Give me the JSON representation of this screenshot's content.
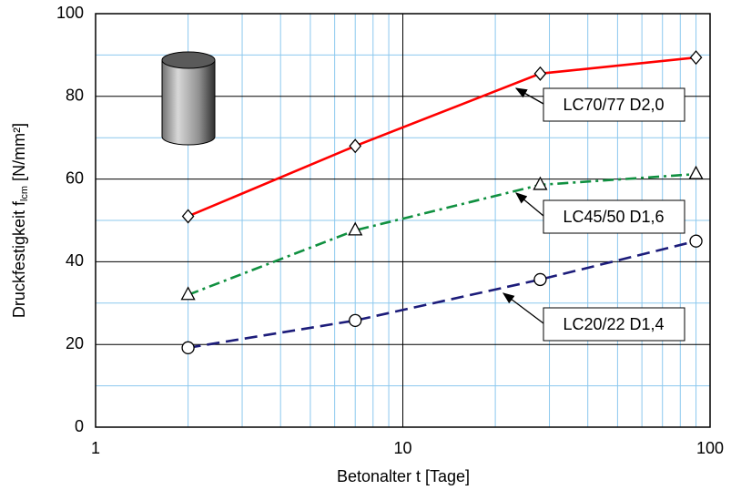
{
  "chart_data": {
    "type": "line",
    "x_label": "Betonalter t [Tage]",
    "y_label": {
      "text": "Druckfestigkeit f",
      "subscript": "lcm",
      "unit": "[N/mm²]"
    },
    "x_log": true,
    "xlim": [
      1,
      100
    ],
    "ylim": [
      0,
      100
    ],
    "xticks": [
      1,
      10,
      100
    ],
    "yticks": [
      0,
      20,
      40,
      60,
      80,
      100
    ],
    "x_minor_ticks": [
      2,
      3,
      4,
      5,
      6,
      7,
      8,
      9,
      20,
      30,
      40,
      50,
      60,
      70,
      80,
      90
    ],
    "y_minor_ticks": [
      10,
      30,
      50,
      70,
      90
    ],
    "grid": true,
    "x": [
      2,
      7,
      28,
      90
    ],
    "series": [
      {
        "name": "LC70/77 D2,0",
        "color": "#ff0000",
        "line_style": "solid",
        "marker": "diamond",
        "values": [
          51,
          68,
          85.5,
          89.4
        ]
      },
      {
        "name": "LC45/50 D1,6",
        "color": "#109040",
        "line_style": "dashdot",
        "marker": "triangle",
        "values": [
          32,
          47.6,
          58.6,
          61.2
        ]
      },
      {
        "name": "LC20/22 D1,4",
        "color": "#1c1c7a",
        "line_style": "dashed",
        "marker": "circle",
        "values": [
          19.2,
          25.8,
          35.7,
          45
        ]
      }
    ]
  }
}
